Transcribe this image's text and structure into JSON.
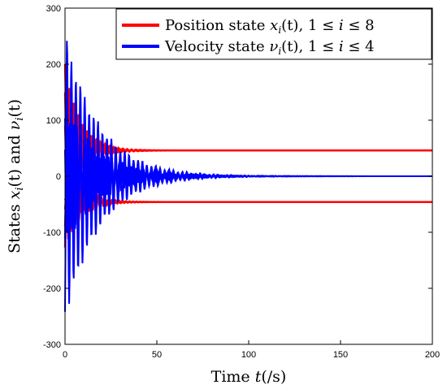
{
  "chart_data": {
    "type": "line",
    "title": "",
    "xlabel": {
      "prefix": "Time ",
      "var": "t",
      "suffix": "(/s)"
    },
    "ylabel": {
      "prefix": "States ",
      "x": "x",
      "xi": "i",
      "arg": "(t)",
      "mid": " and ",
      "nu": "ν",
      "nui": "i",
      "arg2": "(t)"
    },
    "xlim": [
      0,
      200
    ],
    "ylim": [
      -300,
      300
    ],
    "xticks": [
      0,
      50,
      100,
      150,
      200
    ],
    "yticks": [
      -300,
      -200,
      -100,
      0,
      100,
      200,
      300
    ],
    "grid": false,
    "legend_position": "top-right",
    "colors": {
      "position": "#ff0000",
      "velocity": "#0000ff"
    },
    "series": [
      {
        "name": "Position state x_i(t), 1 ≤ i ≤ 8",
        "group": "position",
        "color": "#ff0000",
        "start": 200,
        "steady": 46
      },
      {
        "name": "",
        "group": "position",
        "color": "#ff0000",
        "start": 150,
        "steady": 46
      },
      {
        "name": "",
        "group": "position",
        "color": "#ff0000",
        "start": 90,
        "steady": 46
      },
      {
        "name": "",
        "group": "position",
        "color": "#ff0000",
        "start": 40,
        "steady": 46
      },
      {
        "name": "",
        "group": "position",
        "color": "#ff0000",
        "start": -40,
        "steady": -46
      },
      {
        "name": "",
        "group": "position",
        "color": "#ff0000",
        "start": -90,
        "steady": -46
      },
      {
        "name": "",
        "group": "position",
        "color": "#ff0000",
        "start": -130,
        "steady": -46
      },
      {
        "name": "",
        "group": "position",
        "color": "#ff0000",
        "start": -60,
        "steady": -46
      },
      {
        "name": "Velocity state ν_i(t), 1 ≤ i ≤ 4",
        "group": "velocity",
        "color": "#0000ff",
        "start": -250,
        "steady": 0
      },
      {
        "name": "",
        "group": "velocity",
        "color": "#0000ff",
        "start": 100,
        "steady": 0
      },
      {
        "name": "",
        "group": "velocity",
        "color": "#0000ff",
        "start": -120,
        "steady": 0
      },
      {
        "name": "",
        "group": "velocity",
        "color": "#0000ff",
        "start": 60,
        "steady": 0
      }
    ],
    "legend": [
      {
        "text": "Position state ",
        "var": "x",
        "sub": "i",
        "arg": "(t), 1 ≤ ",
        "iv": "i",
        "tail": " ≤ 8",
        "color": "#ff0000"
      },
      {
        "text": "Velocity state ",
        "var": "ν",
        "sub": "i",
        "arg": "(t), 1 ≤ ",
        "iv": "i",
        "tail": " ≤ 4",
        "color": "#0000ff"
      }
    ]
  }
}
